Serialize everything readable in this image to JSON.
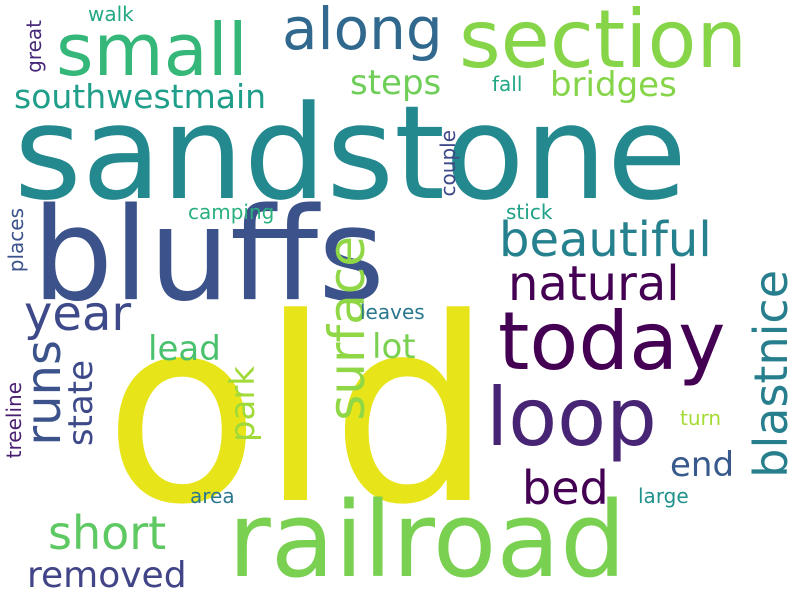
{
  "words": [
    {
      "id": "old",
      "text": "old",
      "color": "#e7e419"
    },
    {
      "id": "sandstone",
      "text": "sandstone",
      "color": "#23898e"
    },
    {
      "id": "bluffs",
      "text": "bluffs",
      "color": "#3b528b"
    },
    {
      "id": "railroad",
      "text": "railroad",
      "color": "#7ad151"
    },
    {
      "id": "section",
      "text": "section",
      "color": "#86d549"
    },
    {
      "id": "today",
      "text": "today",
      "color": "#440154"
    },
    {
      "id": "loop",
      "text": "loop",
      "color": "#482475"
    },
    {
      "id": "small",
      "text": "small",
      "color": "#35b779"
    },
    {
      "id": "along",
      "text": "along",
      "color": "#31688e"
    },
    {
      "id": "blastnice",
      "text": "blastnice",
      "color": "#277f8e"
    },
    {
      "id": "surface",
      "text": "surface",
      "color": "#8fd744"
    },
    {
      "id": "beautiful",
      "text": "beautiful",
      "color": "#26818e"
    },
    {
      "id": "natural",
      "text": "natural",
      "color": "#440154"
    },
    {
      "id": "runs",
      "text": "runs",
      "color": "#3b528b"
    },
    {
      "id": "year",
      "text": "year",
      "color": "#3e4989"
    },
    {
      "id": "short",
      "text": "short",
      "color": "#5ec962"
    },
    {
      "id": "removed",
      "text": "removed",
      "color": "#414487"
    },
    {
      "id": "bed",
      "text": "bed",
      "color": "#440154"
    },
    {
      "id": "southwestmain",
      "text": "southwestmain",
      "color": "#1f9e89"
    },
    {
      "id": "steps",
      "text": "steps",
      "color": "#6ece58"
    },
    {
      "id": "bridges",
      "text": "bridges",
      "color": "#86d549"
    },
    {
      "id": "state",
      "text": "state",
      "color": "#3e4989"
    },
    {
      "id": "park",
      "text": "park",
      "color": "#a0da39"
    },
    {
      "id": "lead",
      "text": "lead",
      "color": "#4ac16d"
    },
    {
      "id": "lot",
      "text": "lot",
      "color": "#7ad151"
    },
    {
      "id": "end",
      "text": "end",
      "color": "#38598c"
    },
    {
      "id": "leaves",
      "text": "leaves",
      "color": "#2a788e"
    },
    {
      "id": "camping",
      "text": "camping",
      "color": "#2ab07f"
    },
    {
      "id": "stick",
      "text": "stick",
      "color": "#1fa187"
    },
    {
      "id": "couple",
      "text": "couple",
      "color": "#3e4989"
    },
    {
      "id": "places",
      "text": "places",
      "color": "#3b528b"
    },
    {
      "id": "treeline",
      "text": "treeline",
      "color": "#481f70"
    },
    {
      "id": "great",
      "text": "great",
      "color": "#482878"
    },
    {
      "id": "walk",
      "text": "walk",
      "color": "#22a884"
    },
    {
      "id": "fall",
      "text": "fall",
      "color": "#22a884"
    },
    {
      "id": "turn",
      "text": "turn",
      "color": "#a5db36"
    },
    {
      "id": "area",
      "text": "area",
      "color": "#2a788e"
    },
    {
      "id": "large",
      "text": "large",
      "color": "#20928c"
    }
  ]
}
